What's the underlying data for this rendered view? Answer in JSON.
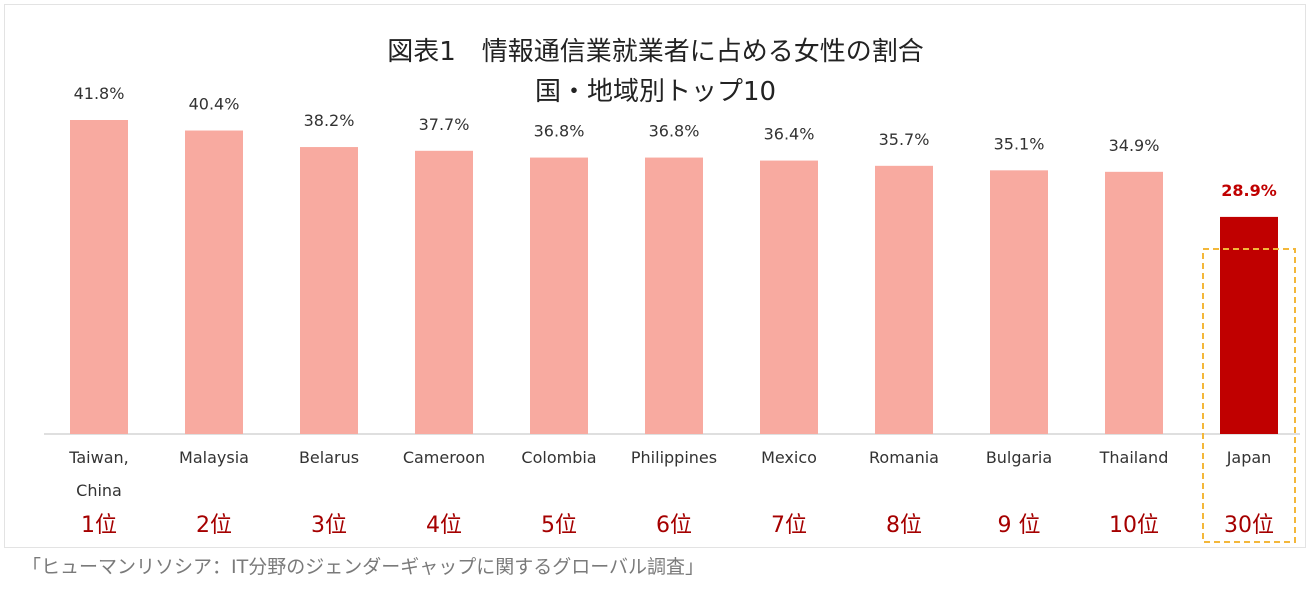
{
  "chart_data": {
    "type": "bar",
    "title": "図表1　情報通信業就業者に占める女性の割合",
    "subtitle": "国・地域別トップ10",
    "categories": [
      "Taiwan,\nChina",
      "Malaysia",
      "Belarus",
      "Cameroon",
      "Colombia",
      "Philippines",
      "Mexico",
      "Romania",
      "Bulgaria",
      "Thailand",
      "Japan"
    ],
    "ranks": [
      "1位",
      "2位",
      "3位",
      "4位",
      "5位",
      "6位",
      "7位",
      "8位",
      "9 位",
      "10位",
      "30位"
    ],
    "values": [
      41.8,
      40.4,
      38.2,
      37.7,
      36.8,
      36.8,
      36.4,
      35.7,
      35.1,
      34.9,
      28.9
    ],
    "value_labels": [
      "41.8%",
      "40.4%",
      "38.2%",
      "37.7%",
      "36.8%",
      "36.8%",
      "36.4%",
      "35.7%",
      "35.1%",
      "34.9%",
      "28.9%"
    ],
    "unit": "%",
    "highlight": "Japan",
    "colors": {
      "bar": "#f8aaa0",
      "highlight_bar": "#c00000",
      "rank_text": "#a50000",
      "highlight_label": "#c00000",
      "highlight_box": "#f3b73a"
    },
    "xlabel": "",
    "ylabel": "",
    "grid": false,
    "legend": "none"
  },
  "source": "「ヒューマンリソシア：IT分野のジェンダーギャップに関するグローバル調査」"
}
